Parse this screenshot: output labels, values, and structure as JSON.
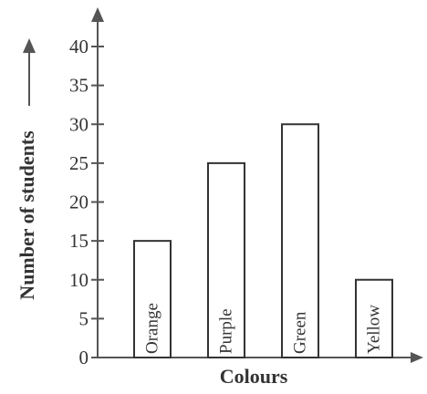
{
  "chart_data": {
    "type": "bar",
    "categories": [
      "Orange",
      "Purple",
      "Green",
      "Yellow"
    ],
    "values": [
      15,
      25,
      30,
      10
    ],
    "xlabel": "Colours",
    "ylabel": "Number of students",
    "ylim": [
      0,
      40
    ],
    "yticks": [
      "0",
      "5",
      "10",
      "15",
      "20",
      "25",
      "30",
      "35",
      "40"
    ],
    "category_labels_inside_bars": true,
    "grid": false,
    "bar_fill": "#ffffff",
    "bar_stroke": "#333333",
    "axis_color": "#555555"
  }
}
